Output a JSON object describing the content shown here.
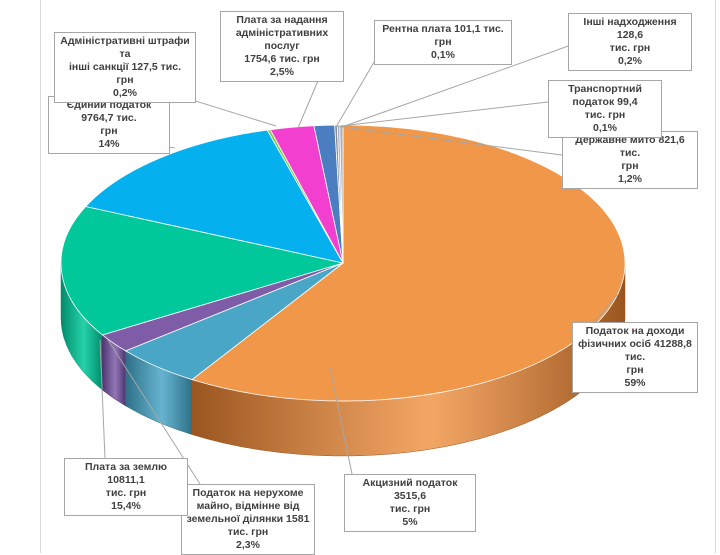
{
  "chart_data": {
    "type": "pie",
    "title": "",
    "slices": [
      {
        "name": "Податок на доходи фізичних осіб",
        "value": 41288.8,
        "percent": 59,
        "color": "#f0974a",
        "side_color": "#9a5520",
        "label_lines": [
          "Податок на доходи",
          "фізичних осіб 41288,8 тис.",
          "грн",
          "59%"
        ]
      },
      {
        "name": "Акцизний податок",
        "value": 3515.6,
        "percent": 5,
        "color": "#4aa6c6",
        "side_color": "#2e6f87",
        "label_lines": [
          "Акцизний податок 3515,6",
          "тис. грн",
          "5%"
        ]
      },
      {
        "name": "Податок на нерухоме майно, відмінне від земельної ділянки",
        "value": 1581,
        "percent": 2.3,
        "color": "#7e5ca8",
        "side_color": "#4d3570",
        "label_lines": [
          "Податок на нерухоме",
          "майно, відмінне від",
          "земельної ділянки 1581",
          "тис. грн",
          "2,3%"
        ]
      },
      {
        "name": "Плата за землю",
        "value": 10811.1,
        "percent": 15.4,
        "color": "#00c89a",
        "side_color": "#008a6a",
        "label_lines": [
          "Плата за землю 10811,1",
          "тис. грн",
          "15,4%"
        ]
      },
      {
        "name": "Єдиний податок",
        "value": 9764.7,
        "percent": 14,
        "color": "#05b0ee",
        "side_color": "#04789f",
        "label_lines": [
          "Єдиний податок 9764,7 тис.",
          "грн",
          "14%"
        ]
      },
      {
        "name": "Адміністративні штрафи та інші санкції",
        "value": 127.5,
        "percent": 0.2,
        "color": "#7fd23c",
        "side_color": "#4f8a22",
        "label_lines": [
          "Адміністративні штрафи та",
          "інші санкції 127,5 тис. грн",
          "0,2%"
        ]
      },
      {
        "name": "Плата за надання адміністративних послуг",
        "value": 1754.6,
        "percent": 2.5,
        "color": "#f23fd0",
        "side_color": "#9e2888",
        "label_lines": [
          "Плата за надання",
          "адміністративних послуг",
          "1754,6 тис. грн",
          "2,5%"
        ]
      },
      {
        "name": "Державне мито",
        "value": 821.6,
        "percent": 1.2,
        "color": "#4a7ec0",
        "side_color": "#2e5180",
        "label_lines": [
          "Державне мито  821,6 тис.",
          "грн",
          "1,2%"
        ]
      },
      {
        "name": "Рентна плата",
        "value": 101.1,
        "percent": 0.1,
        "color": "#8a8a8a",
        "side_color": "#555555",
        "label_lines": [
          "Рентна плата 101,1  тис. грн",
          "0,1%"
        ]
      },
      {
        "name": "Транспортний податок",
        "value": 99.4,
        "percent": 0.1,
        "color": "#9fb6d8",
        "side_color": "#60759a",
        "label_lines": [
          "Транспортний податок 99,4",
          "тис. грн",
          "0,1%"
        ]
      },
      {
        "name": "Інші надходження",
        "value": 128.6,
        "percent": 0.2,
        "color": "#b0b0b0",
        "side_color": "#707070",
        "label_lines": [
          "Інші надходження 128,6",
          "тис. грн",
          "0,2%"
        ]
      }
    ]
  }
}
